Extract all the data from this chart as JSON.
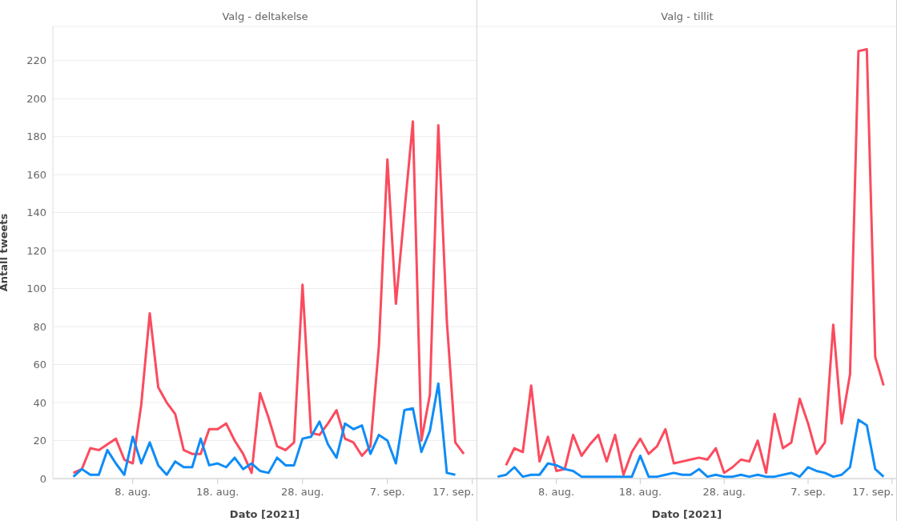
{
  "chart_data": [
    {
      "type": "line",
      "title": "Valg - deltakelse",
      "xlabel": "Dato [2021]",
      "ylabel": "Antall tweets",
      "x": [
        "2021-08-01",
        "2021-08-02",
        "2021-08-03",
        "2021-08-04",
        "2021-08-05",
        "2021-08-06",
        "2021-08-07",
        "2021-08-08",
        "2021-08-09",
        "2021-08-10",
        "2021-08-11",
        "2021-08-12",
        "2021-08-13",
        "2021-08-14",
        "2021-08-15",
        "2021-08-16",
        "2021-08-17",
        "2021-08-18",
        "2021-08-19",
        "2021-08-20",
        "2021-08-21",
        "2021-08-22",
        "2021-08-23",
        "2021-08-24",
        "2021-08-25",
        "2021-08-26",
        "2021-08-27",
        "2021-08-28",
        "2021-08-29",
        "2021-08-30",
        "2021-08-31",
        "2021-09-01",
        "2021-09-02",
        "2021-09-03",
        "2021-09-04",
        "2021-09-05",
        "2021-09-06",
        "2021-09-07",
        "2021-09-08",
        "2021-09-09",
        "2021-09-10",
        "2021-09-11",
        "2021-09-12",
        "2021-09-13",
        "2021-09-14",
        "2021-09-15",
        "2021-09-16"
      ],
      "series": [
        {
          "color": "#fb4b5e",
          "values": [
            3,
            5,
            16,
            15,
            18,
            21,
            10,
            8,
            39,
            87,
            48,
            40,
            34,
            15,
            13,
            13,
            26,
            26,
            29,
            20,
            13,
            3,
            45,
            32,
            17,
            15,
            19,
            102,
            24,
            23,
            29,
            36,
            21,
            19,
            12,
            17,
            70,
            168,
            92,
            140,
            188,
            20,
            44,
            186,
            83,
            19,
            13
          ]
        },
        {
          "color": "#0f8cf7",
          "values": [
            1,
            5,
            2,
            2,
            15,
            8,
            2,
            22,
            8,
            19,
            7,
            2,
            9,
            6,
            6,
            21,
            7,
            8,
            6,
            11,
            5,
            8,
            4,
            3,
            11,
            7,
            7,
            21,
            22,
            30,
            18,
            11,
            29,
            26,
            28,
            13,
            23,
            20,
            8,
            36,
            37,
            14,
            25,
            50,
            3,
            2,
            null
          ]
        }
      ],
      "xlim": [
        "2021-07-29T14:00",
        "2021-09-17T12:00"
      ],
      "xticks": [
        {
          "value": "2021-08-08",
          "label": "8. aug."
        },
        {
          "value": "2021-08-18",
          "label": "18. aug."
        },
        {
          "value": "2021-08-28",
          "label": "28. aug."
        },
        {
          "value": "2021-09-07",
          "label": "7. sep."
        },
        {
          "value": "2021-09-17",
          "label": "17. sep."
        }
      ],
      "ylim": [
        0,
        238
      ],
      "yticks": [
        0,
        20,
        40,
        60,
        80,
        100,
        120,
        140,
        160,
        180,
        200,
        220
      ],
      "grid": "y"
    },
    {
      "type": "line",
      "title": "Valg - tillit",
      "xlabel": "Dato [2021]",
      "x": [
        "2021-08-01",
        "2021-08-02",
        "2021-08-03",
        "2021-08-04",
        "2021-08-05",
        "2021-08-06",
        "2021-08-07",
        "2021-08-08",
        "2021-08-09",
        "2021-08-10",
        "2021-08-11",
        "2021-08-12",
        "2021-08-13",
        "2021-08-14",
        "2021-08-15",
        "2021-08-16",
        "2021-08-17",
        "2021-08-18",
        "2021-08-19",
        "2021-08-20",
        "2021-08-21",
        "2021-08-22",
        "2021-08-23",
        "2021-08-24",
        "2021-08-25",
        "2021-08-26",
        "2021-08-27",
        "2021-08-28",
        "2021-08-29",
        "2021-08-30",
        "2021-08-31",
        "2021-09-01",
        "2021-09-02",
        "2021-09-03",
        "2021-09-04",
        "2021-09-05",
        "2021-09-06",
        "2021-09-07",
        "2021-09-08",
        "2021-09-09",
        "2021-09-10",
        "2021-09-11",
        "2021-09-12",
        "2021-09-13",
        "2021-09-14",
        "2021-09-15",
        "2021-09-16"
      ],
      "series": [
        {
          "color": "#fb4b5e",
          "values": [
            null,
            7,
            16,
            14,
            49,
            9,
            22,
            4,
            5,
            23,
            12,
            18,
            23,
            9,
            23,
            2,
            14,
            21,
            13,
            17,
            26,
            8,
            9,
            10,
            11,
            10,
            16,
            3,
            6,
            10,
            9,
            20,
            3,
            34,
            16,
            19,
            42,
            29,
            13,
            19,
            81,
            29,
            55,
            225,
            226,
            64,
            49
          ]
        },
        {
          "color": "#0f8cf7",
          "values": [
            1,
            2,
            6,
            1,
            2,
            2,
            8,
            7,
            5,
            4,
            1,
            1,
            1,
            1,
            1,
            1,
            1,
            12,
            1,
            1,
            2,
            3,
            2,
            2,
            5,
            1,
            2,
            1,
            1,
            2,
            1,
            2,
            1,
            1,
            2,
            3,
            1,
            6,
            4,
            3,
            1,
            2,
            6,
            31,
            28,
            5,
            1
          ]
        }
      ],
      "xlim": [
        "2021-07-29T14:00",
        "2021-09-17T12:00"
      ],
      "xticks": [
        {
          "value": "2021-08-08",
          "label": "8. aug."
        },
        {
          "value": "2021-08-18",
          "label": "18. aug."
        },
        {
          "value": "2021-08-28",
          "label": "28. aug."
        },
        {
          "value": "2021-09-07",
          "label": "7. sep."
        },
        {
          "value": "2021-09-17",
          "label": "17. sep."
        }
      ],
      "ylim": [
        0,
        238
      ],
      "yticks": [
        0,
        20,
        40,
        60,
        80,
        100,
        120,
        140,
        160,
        180,
        200,
        220
      ],
      "grid": "y",
      "tick_labels": "x"
    }
  ]
}
